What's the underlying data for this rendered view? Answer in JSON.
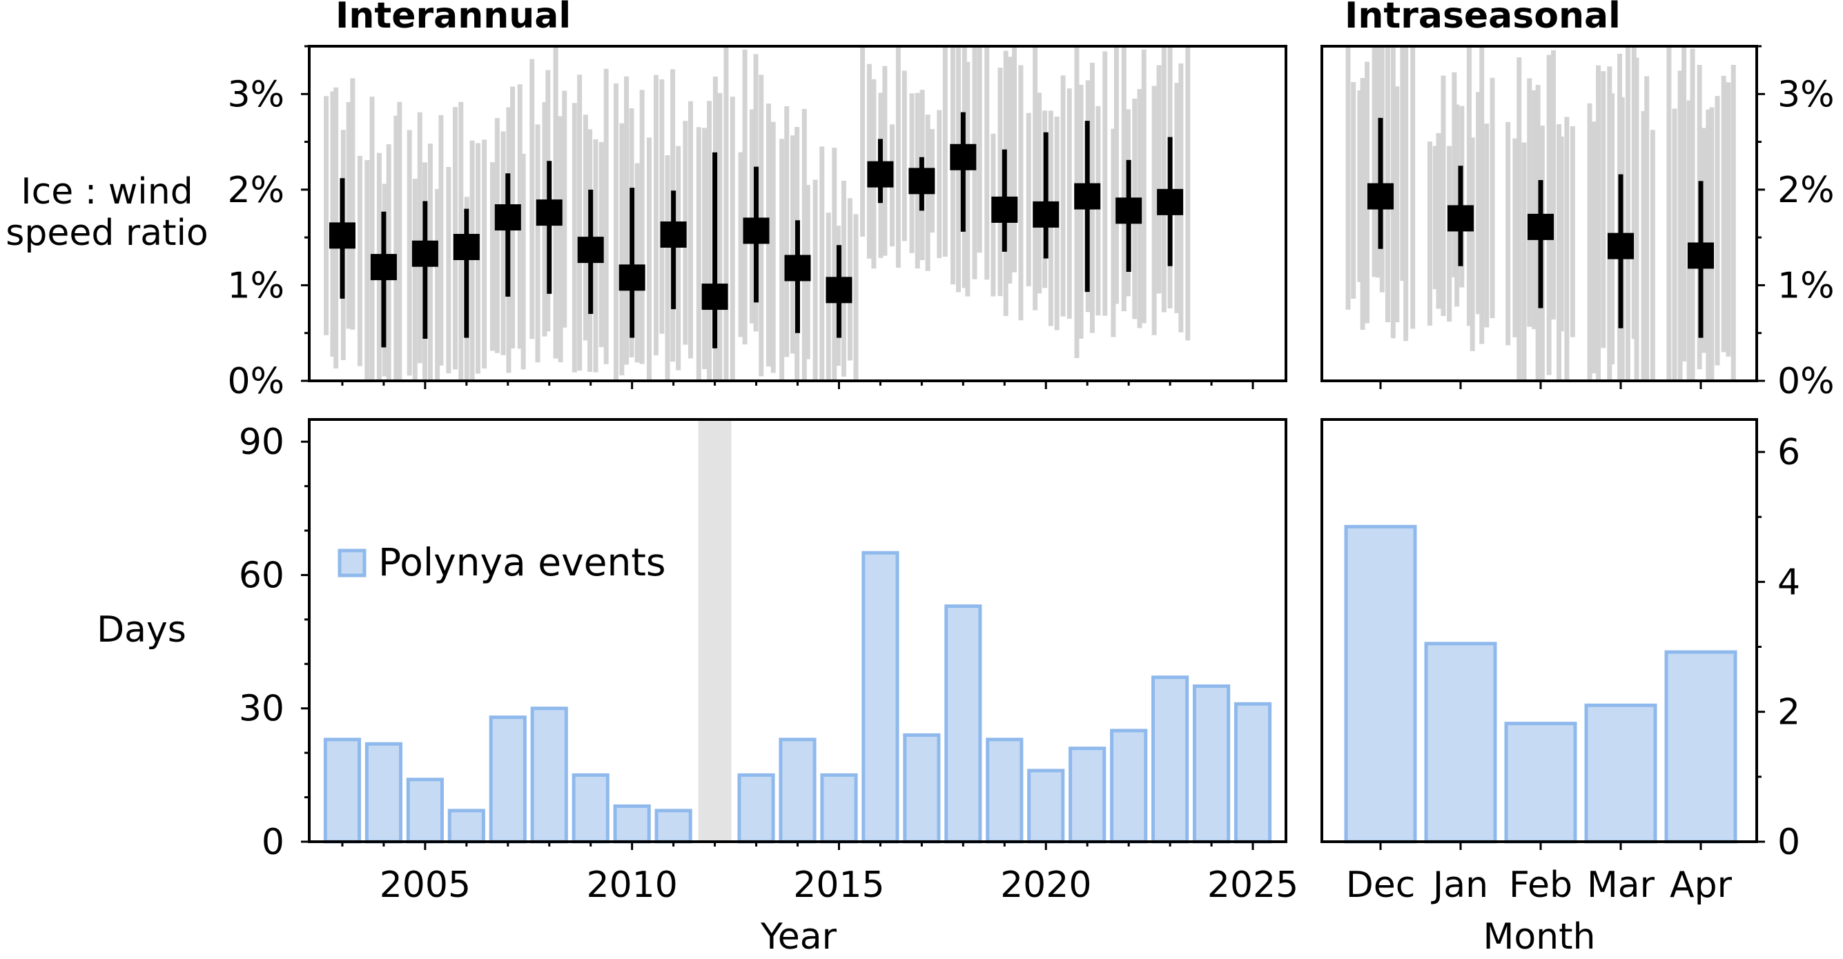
{
  "colors": {
    "bar_fill": "#c6dbf3",
    "bar_edge": "#8fb9ec",
    "whisker_gray": "#d3d3d3",
    "marker": "#000000",
    "gap_band": "#e3e3e3"
  },
  "titles": {
    "left": "Interannual",
    "right": "Intraseasonal"
  },
  "labels": {
    "ratio_ylabel_line1": "Ice : wind",
    "ratio_ylabel_line2": "speed ratio",
    "days_ylabel": "Days",
    "year_xlabel": "Year",
    "month_xlabel": "Month"
  },
  "legend": {
    "label": "Polynya events"
  },
  "chart_data": [
    {
      "panel": "interannual-ratio",
      "type": "scatter",
      "title": "Interannual",
      "ylabel": "Ice : wind speed ratio",
      "xlim": [
        2002.2,
        2025.8
      ],
      "ylim": [
        0,
        3.5
      ],
      "yticks": [
        0,
        1,
        2,
        3
      ],
      "ytick_labels": [
        "0%",
        "1%",
        "2%",
        "3%"
      ],
      "x": [
        2003,
        2004,
        2005,
        2006,
        2007,
        2008,
        2009,
        2010,
        2011,
        2012,
        2013,
        2014,
        2015,
        2016,
        2017,
        2018,
        2019,
        2020,
        2021,
        2022,
        2023
      ],
      "median": [
        1.52,
        1.19,
        1.33,
        1.4,
        1.71,
        1.76,
        1.37,
        1.08,
        1.53,
        0.88,
        1.57,
        1.18,
        0.95,
        2.16,
        2.09,
        2.34,
        1.79,
        1.74,
        1.93,
        1.78,
        1.87
      ],
      "lower": [
        0.86,
        0.35,
        0.44,
        0.45,
        0.88,
        0.91,
        0.7,
        0.45,
        0.75,
        0.34,
        0.82,
        0.5,
        0.45,
        1.86,
        1.78,
        1.56,
        1.35,
        1.28,
        0.93,
        1.14,
        1.2
      ],
      "upper": [
        2.12,
        1.77,
        1.88,
        1.8,
        2.17,
        2.3,
        2.0,
        2.02,
        1.99,
        2.39,
        2.24,
        1.68,
        1.42,
        2.53,
        2.34,
        2.81,
        2.42,
        2.6,
        2.72,
        2.31,
        2.55
      ],
      "background": "daily ratio samples shown as gray vertical traces per year",
      "grid": false
    },
    {
      "panel": "interannual-events",
      "type": "bar",
      "ylabel": "Days",
      "xlabel": "Year",
      "xlim": [
        2002.2,
        2025.8
      ],
      "ylim": [
        0,
        95
      ],
      "yticks": [
        0,
        30,
        60,
        90
      ],
      "xticks": [
        2005,
        2010,
        2015,
        2020,
        2025
      ],
      "x": [
        2003,
        2004,
        2005,
        2006,
        2007,
        2008,
        2009,
        2010,
        2011,
        2013,
        2014,
        2015,
        2016,
        2017,
        2018,
        2019,
        2020,
        2021,
        2022,
        2023,
        2024,
        2025
      ],
      "values": [
        23,
        22,
        14,
        7,
        28,
        30,
        15,
        8,
        7,
        15,
        23,
        15,
        65,
        24,
        53,
        23,
        16,
        21,
        25,
        37,
        35,
        31
      ],
      "series": [
        {
          "name": "Polynya events"
        }
      ],
      "missing_year": 2012,
      "legend_position": "upper-left",
      "grid": false
    },
    {
      "panel": "intraseasonal-ratio",
      "type": "scatter",
      "title": "Intraseasonal",
      "categories": [
        "Dec",
        "Jan",
        "Feb",
        "Mar",
        "Apr"
      ],
      "ylim": [
        0,
        3.5
      ],
      "yticks": [
        0,
        1,
        2,
        3
      ],
      "ytick_labels": [
        "0%",
        "1%",
        "2%",
        "3%"
      ],
      "median": [
        1.93,
        1.7,
        1.61,
        1.41,
        1.31
      ],
      "lower": [
        1.38,
        1.2,
        0.76,
        0.55,
        0.45
      ],
      "upper": [
        2.75,
        2.25,
        2.1,
        2.16,
        2.09
      ],
      "y_axis_side": "right",
      "grid": false
    },
    {
      "panel": "intraseasonal-events",
      "type": "bar",
      "xlabel": "Month",
      "categories": [
        "Dec",
        "Jan",
        "Feb",
        "Mar",
        "Apr"
      ],
      "values": [
        4.85,
        3.05,
        1.82,
        2.1,
        2.92
      ],
      "ylim": [
        0,
        6.5
      ],
      "yticks": [
        0,
        2,
        4,
        6
      ],
      "y_axis_side": "right",
      "grid": false
    }
  ]
}
